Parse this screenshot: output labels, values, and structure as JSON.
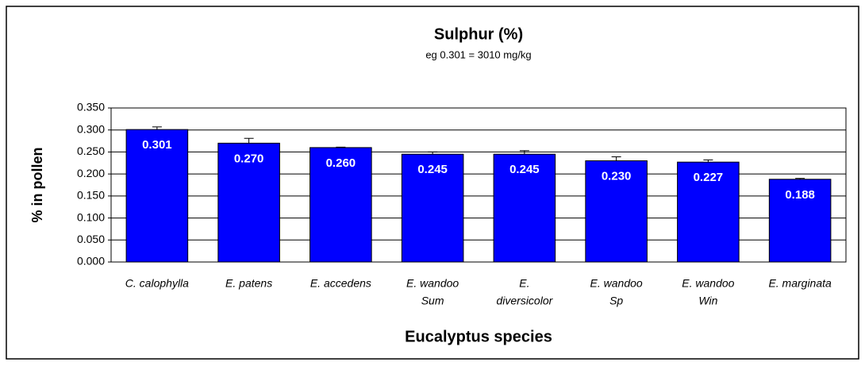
{
  "chart_data": {
    "type": "bar",
    "title": "Sulphur (%)",
    "subtitle": "eg 0.301 = 3010 mg/kg",
    "x_label": "Eucalyptus species",
    "y_label": "% in pollen",
    "categories": [
      [
        "C. calophylla"
      ],
      [
        "E. patens"
      ],
      [
        "E. accedens"
      ],
      [
        "E. wandoo",
        "Sum"
      ],
      [
        "E.",
        "diversicolor"
      ],
      [
        "E. wandoo",
        "Sp"
      ],
      [
        "E. wandoo",
        "Win"
      ],
      [
        "E. marginata"
      ]
    ],
    "values": [
      0.301,
      0.27,
      0.26,
      0.245,
      0.245,
      0.23,
      0.227,
      0.188
    ],
    "value_labels": [
      "0.301",
      "0.270",
      "0.260",
      "0.245",
      "0.245",
      "0.230",
      "0.227",
      "0.188"
    ],
    "errors": [
      0.006,
      0.011,
      0.001,
      0.005,
      0.008,
      0.009,
      0.005,
      0.002
    ],
    "color": "#0000ff",
    "ylim": [
      0,
      0.35
    ],
    "yticks": [
      {
        "value": 0,
        "label": "0.000"
      },
      {
        "value": 0.05,
        "label": "0.050"
      },
      {
        "value": 0.1,
        "label": "0.100"
      },
      {
        "value": 0.15,
        "label": "0.150"
      },
      {
        "value": 0.2,
        "label": "0.200"
      },
      {
        "value": 0.25,
        "label": "0.250"
      },
      {
        "value": 0.3,
        "label": "0.300"
      },
      {
        "value": 0.35,
        "label": "0.350"
      }
    ],
    "grid": true
  }
}
